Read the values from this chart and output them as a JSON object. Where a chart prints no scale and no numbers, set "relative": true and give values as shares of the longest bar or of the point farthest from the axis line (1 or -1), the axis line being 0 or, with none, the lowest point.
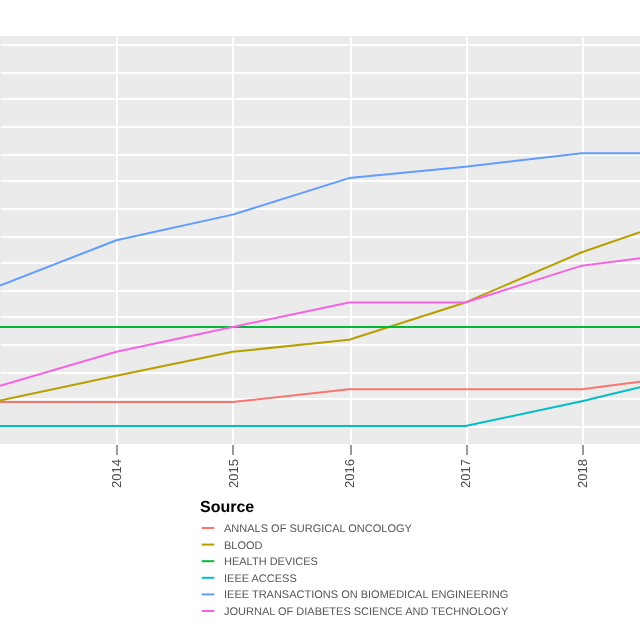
{
  "chart_data": {
    "type": "line",
    "relative": true,
    "legend_title": "Source",
    "legend": "bottom",
    "grid": true,
    "x": [
      2013,
      2014,
      2015,
      2016,
      2017,
      2018,
      2018.5
    ],
    "xlim": [
      2013,
      2018.5
    ],
    "xticks": [
      2014,
      2015,
      2016,
      2017,
      2018
    ],
    "series": [
      {
        "name": "ANNALS OF SURGICAL ONCOLOGY",
        "color": "#f8766d",
        "values": [
          0.088,
          0.088,
          0.088,
          0.135,
          0.135,
          0.135,
          0.162
        ]
      },
      {
        "name": "BLOOD",
        "color": "#b79f00",
        "values": [
          0.093,
          0.184,
          0.272,
          0.316,
          0.453,
          0.637,
          0.711
        ]
      },
      {
        "name": "HEALTH DEVICES",
        "color": "#00ba38",
        "values": [
          0.363,
          0.363,
          0.363,
          0.363,
          0.363,
          0.363,
          0.363
        ]
      },
      {
        "name": "IEEE ACCESS",
        "color": "#00bfc4",
        "values": [
          0,
          0,
          0,
          0,
          0,
          0.091,
          0.142
        ]
      },
      {
        "name": "IEEE TRANSACTIONS ON BIOMEDICAL ENGINEERING",
        "color": "#619cff",
        "values": [
          0.515,
          0.681,
          0.775,
          0.909,
          0.951,
          1,
          1
        ]
      },
      {
        "name": "JOURNAL OF DIABETES SCIENCE AND TECHNOLOGY",
        "color": "#f564e3",
        "values": [
          0.147,
          0.272,
          0.363,
          0.453,
          0.453,
          0.588,
          0.615
        ]
      }
    ]
  }
}
